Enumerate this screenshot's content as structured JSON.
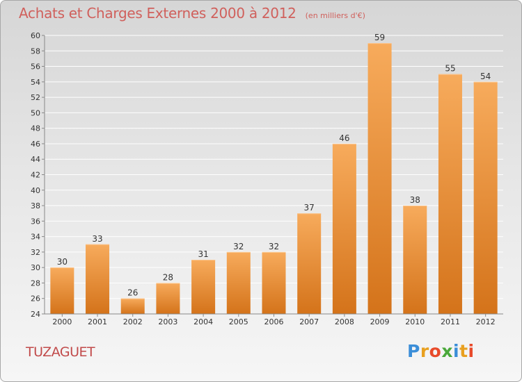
{
  "header": {
    "title": "Achats et Charges Externes 2000 à 2012",
    "subtitle": "(en milliers d'€)"
  },
  "footer": {
    "town": "TUZAGUET",
    "logo_letters": [
      "P",
      "r",
      "o",
      "x",
      "i",
      "t",
      "i"
    ],
    "logo_colors": [
      "#3b8ed8",
      "#e8a020",
      "#e84a2a",
      "#4aa83a",
      "#3b8ed8",
      "#e8a020",
      "#e84a2a"
    ]
  },
  "colors": {
    "bar_light": "#f7ab5c",
    "bar_dark": "#d4731a",
    "grid": "#ffffff",
    "axis": "#888888",
    "text": "#333333"
  },
  "chart_data": {
    "type": "bar",
    "categories": [
      "2000",
      "2001",
      "2002",
      "2003",
      "2004",
      "2005",
      "2006",
      "2007",
      "2008",
      "2009",
      "2010",
      "2011",
      "2012"
    ],
    "values": [
      30,
      33,
      26,
      28,
      31,
      32,
      32,
      37,
      46,
      59,
      38,
      55,
      54
    ],
    "data_labels": [
      "30",
      "33",
      "26",
      "28",
      "31",
      "32",
      "32",
      "37",
      "46",
      "59",
      "38",
      "55",
      "54"
    ],
    "ylim": [
      24,
      60
    ],
    "yticks": [
      24,
      26,
      28,
      30,
      32,
      34,
      36,
      38,
      40,
      42,
      44,
      46,
      48,
      50,
      52,
      54,
      56,
      58,
      60
    ],
    "grid": true,
    "legend": "none"
  }
}
